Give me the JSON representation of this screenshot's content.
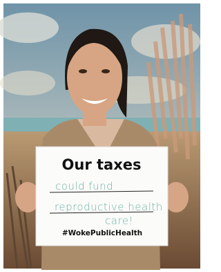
{
  "sign": {
    "heading": "Our taxes",
    "handwriting": [
      "could fund",
      "reproductive health",
      "care!"
    ],
    "hashtag": "#WokePublicHealth"
  }
}
